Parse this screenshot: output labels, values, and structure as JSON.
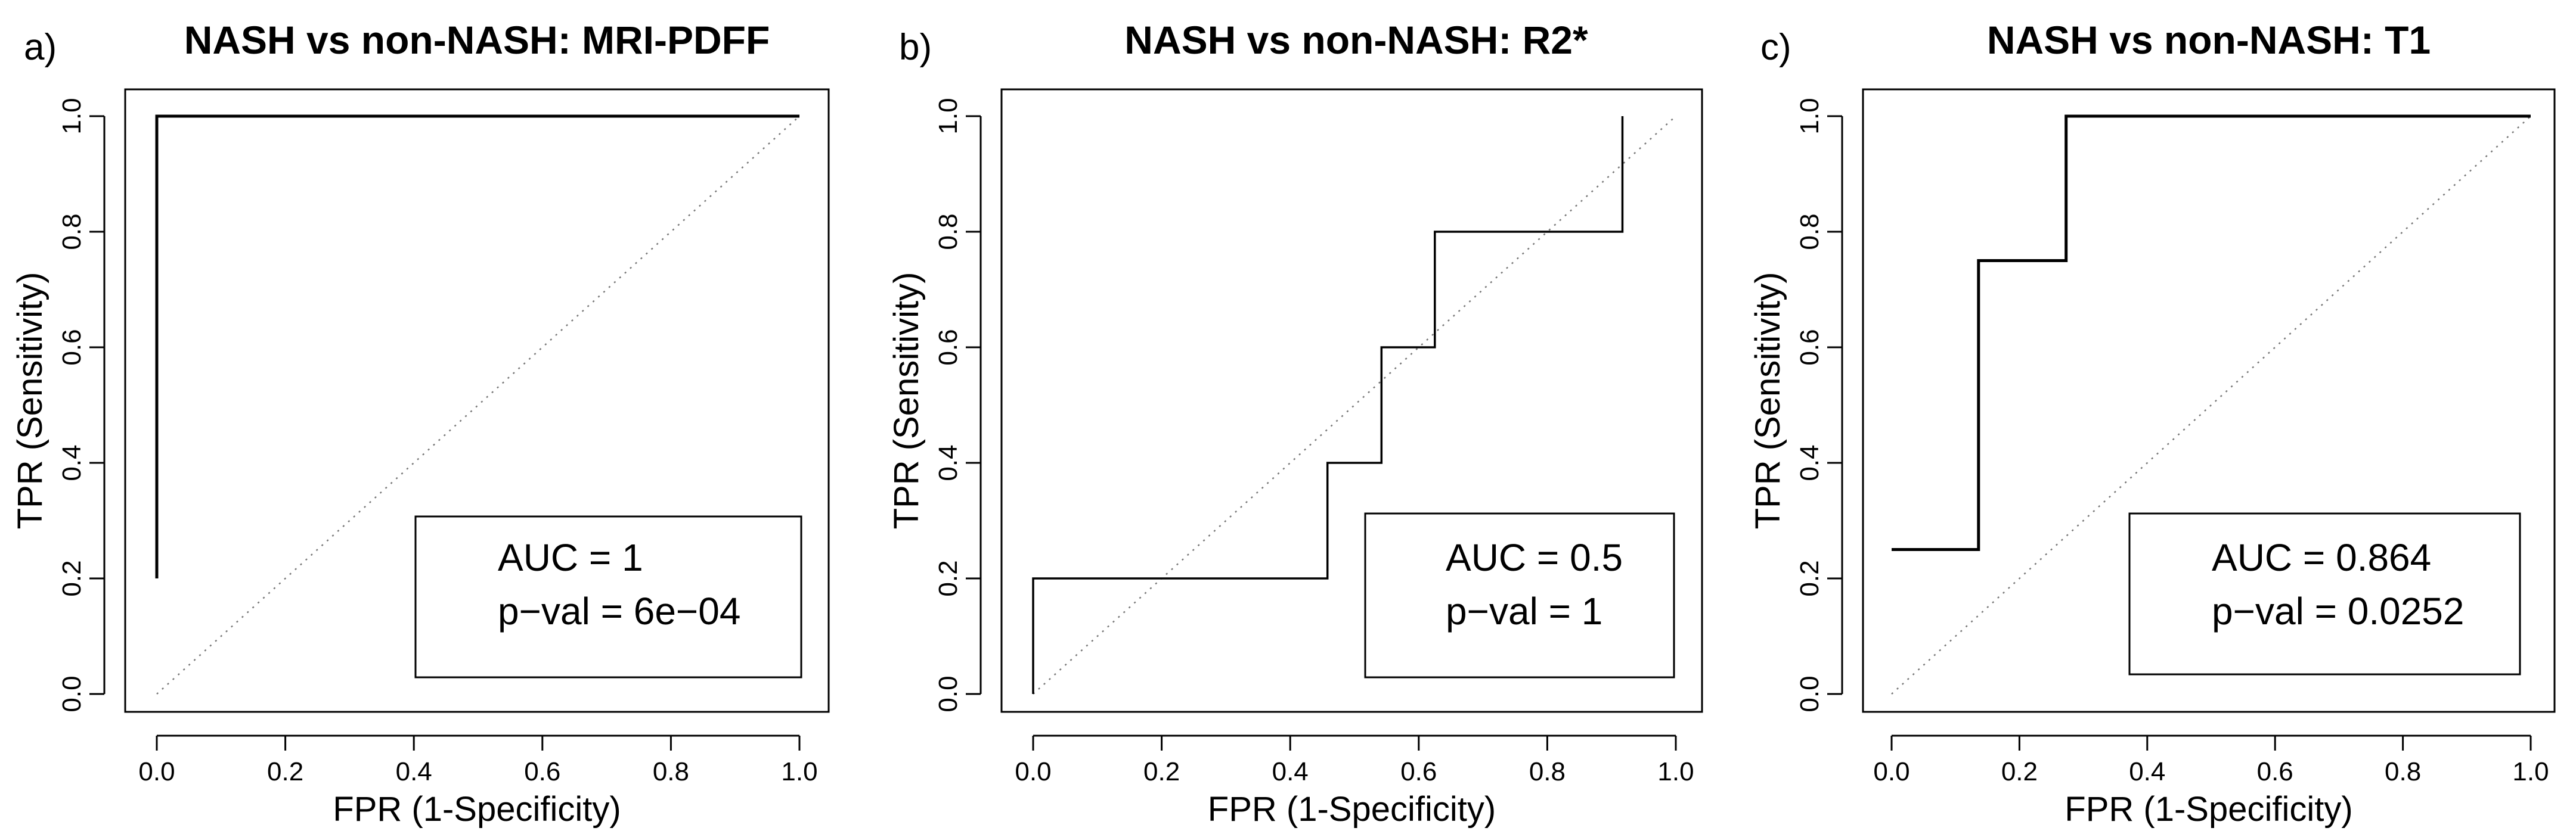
{
  "chart_data": [
    {
      "type": "line",
      "panel_label": "a)",
      "title": "NASH vs non-NASH: MRI-PDFF",
      "xlabel": "FPR (1-Specificity)",
      "ylabel": "TPR (Sensitivity)",
      "xlim": [
        0,
        1
      ],
      "ylim": [
        0,
        1
      ],
      "xticks": [
        "0.0",
        "0.2",
        "0.4",
        "0.6",
        "0.8",
        "1.0"
      ],
      "yticks": [
        "0.0",
        "0.2",
        "0.4",
        "0.6",
        "0.8",
        "1.0"
      ],
      "series": [
        {
          "x": [
            0,
            0,
            1
          ],
          "y": [
            0.2,
            1.0,
            1.0
          ]
        }
      ],
      "reference_line": {
        "x": [
          0,
          1
        ],
        "y": [
          0,
          1
        ],
        "style": "dotted"
      },
      "annotation": {
        "line1": "AUC = 1",
        "line2": "p−val = 6e−04",
        "placement": "bottom-right"
      },
      "grid": false
    },
    {
      "type": "line",
      "panel_label": "b)",
      "title": "NASH vs non-NASH: R2*",
      "xlabel": "FPR (1-Specificity)",
      "ylabel": "TPR (Sensitivity)",
      "xlim": [
        0,
        1
      ],
      "ylim": [
        0,
        1
      ],
      "xticks": [
        "0.0",
        "0.2",
        "0.4",
        "0.6",
        "0.8",
        "1.0"
      ],
      "yticks": [
        "0.0",
        "0.2",
        "0.4",
        "0.6",
        "0.8",
        "1.0"
      ],
      "series": [
        {
          "x": [
            0,
            0,
            0.458,
            0.458,
            0.5,
            0.5,
            0.542,
            0.542,
            0.583,
            0.583,
            0.625,
            0.625,
            0.917,
            0.917
          ],
          "y": [
            0,
            0.2,
            0.2,
            0.4,
            0.4,
            0.4,
            0.4,
            0.6,
            0.6,
            0.6,
            0.6,
            0.8,
            0.8,
            1.0
          ]
        }
      ],
      "reference_line": {
        "x": [
          0,
          1
        ],
        "y": [
          0,
          1
        ],
        "style": "dotted"
      },
      "annotation": {
        "line1": "AUC = 0.5",
        "line2": "p−val = 1",
        "placement": "bottom-right"
      },
      "grid": false
    },
    {
      "type": "line",
      "panel_label": "c)",
      "title": "NASH vs non-NASH: T1",
      "xlabel": "FPR (1-Specificity)",
      "ylabel": "TPR (Sensitivity)",
      "xlim": [
        0,
        1
      ],
      "ylim": [
        0,
        1
      ],
      "xticks": [
        "0.0",
        "0.2",
        "0.4",
        "0.6",
        "0.8",
        "1.0"
      ],
      "yticks": [
        "0.0",
        "0.2",
        "0.4",
        "0.6",
        "0.8",
        "1.0"
      ],
      "series": [
        {
          "x": [
            0,
            0.136,
            0.136,
            0.273,
            0.273,
            1.0
          ],
          "y": [
            0.25,
            0.25,
            0.75,
            0.75,
            1.0,
            1.0
          ]
        }
      ],
      "reference_line": {
        "x": [
          0,
          1
        ],
        "y": [
          0,
          1
        ],
        "style": "dotted"
      },
      "annotation": {
        "line1": "AUC = 0.864",
        "line2": "p−val = 0.0252",
        "placement": "bottom-right"
      },
      "grid": false
    }
  ]
}
